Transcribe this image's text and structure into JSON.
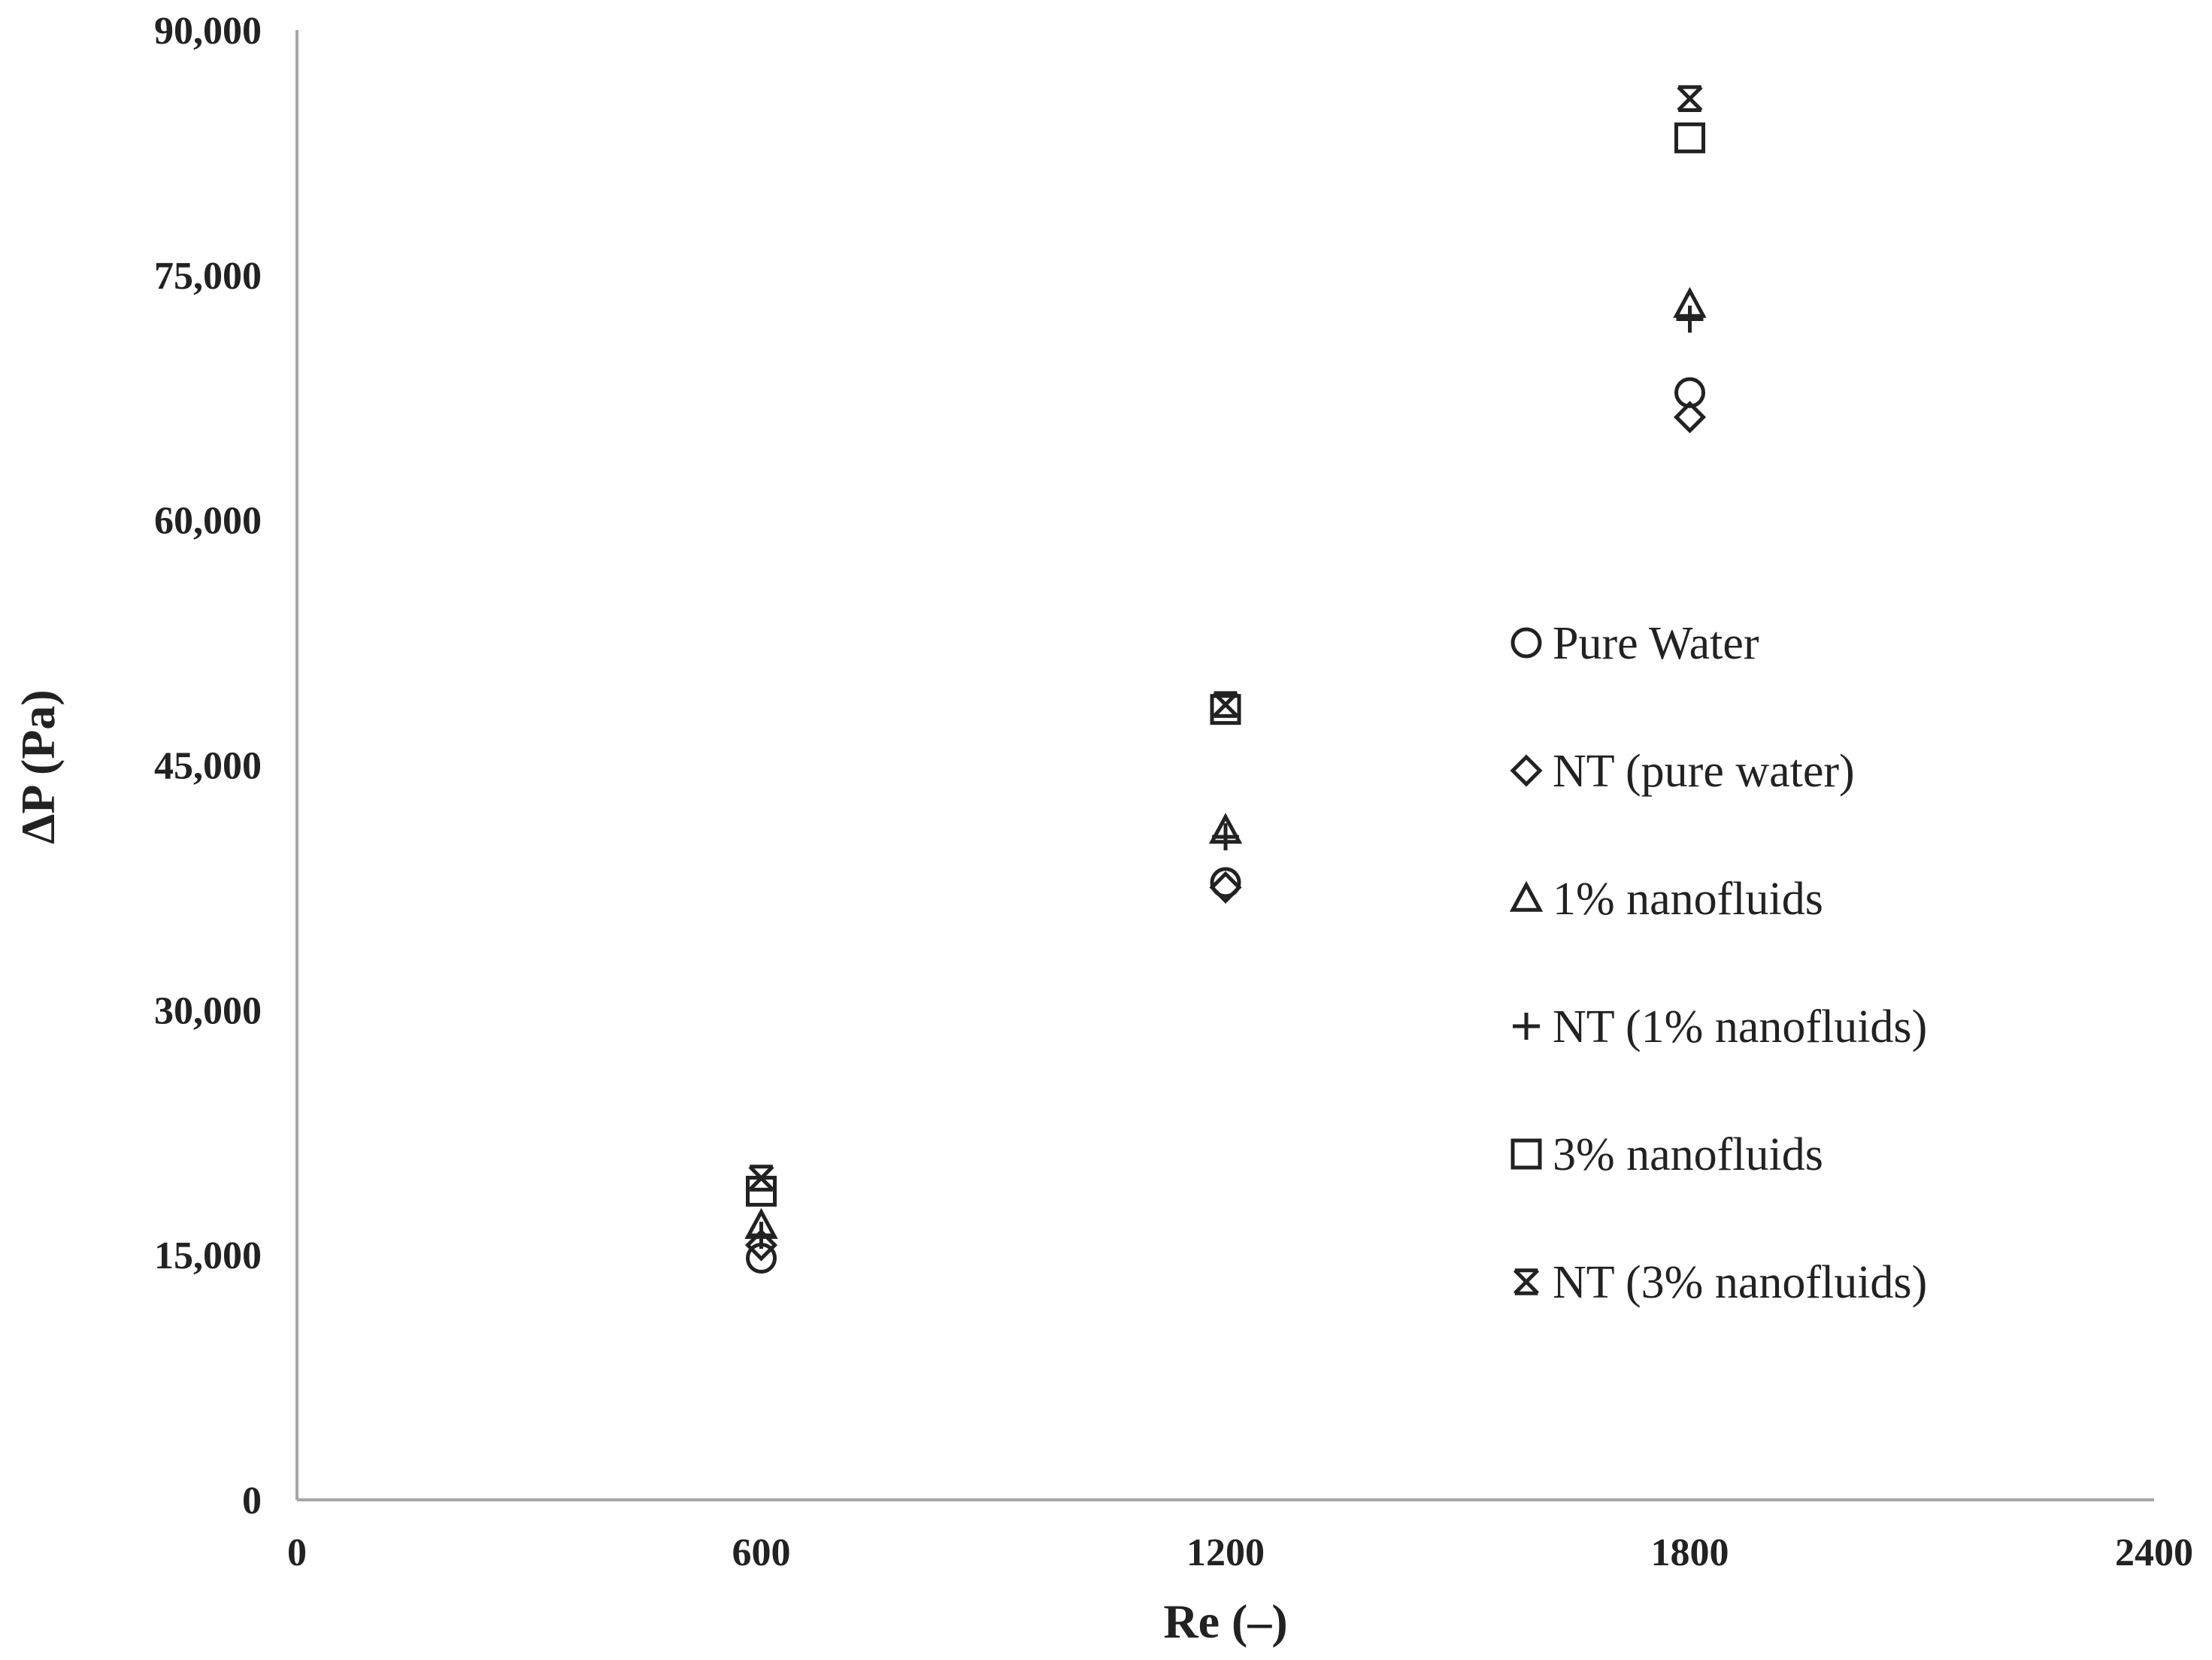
{
  "chart_data": {
    "type": "scatter",
    "xlabel": "Re (–)",
    "ylabel": "ΔP (Pa)",
    "xlim": [
      0,
      2400
    ],
    "ylim": [
      0,
      90000
    ],
    "x_ticks": [
      "0",
      "600",
      "1200",
      "1800",
      "2400"
    ],
    "y_ticks": [
      "0",
      "15,000",
      "30,000",
      "45,000",
      "60,000",
      "75,000",
      "90,000"
    ],
    "grid": false,
    "legend_position": "right",
    "series": [
      {
        "name": "Pure Water",
        "marker": "circle",
        "x": [
          600,
          1200,
          1800
        ],
        "y": [
          14800,
          37800,
          67800
        ]
      },
      {
        "name": "NT (pure water)",
        "marker": "diamond",
        "x": [
          600,
          1200,
          1800
        ],
        "y": [
          15600,
          37500,
          66300
        ]
      },
      {
        "name": "1% nanofluids",
        "marker": "triangle",
        "x": [
          600,
          1200,
          1800
        ],
        "y": [
          16800,
          41000,
          73200
        ]
      },
      {
        "name": "NT (1% nanofluids)",
        "marker": "plus",
        "x": [
          600,
          1200,
          1800
        ],
        "y": [
          16200,
          40600,
          72300
        ]
      },
      {
        "name": "3% nanofluids",
        "marker": "square",
        "x": [
          600,
          1200,
          1800
        ],
        "y": [
          18900,
          48400,
          83400
        ]
      },
      {
        "name": "NT (3% nanofluids)",
        "marker": "asterisk",
        "x": [
          600,
          1200,
          1800
        ],
        "y": [
          19700,
          48700,
          85800
        ]
      }
    ]
  }
}
